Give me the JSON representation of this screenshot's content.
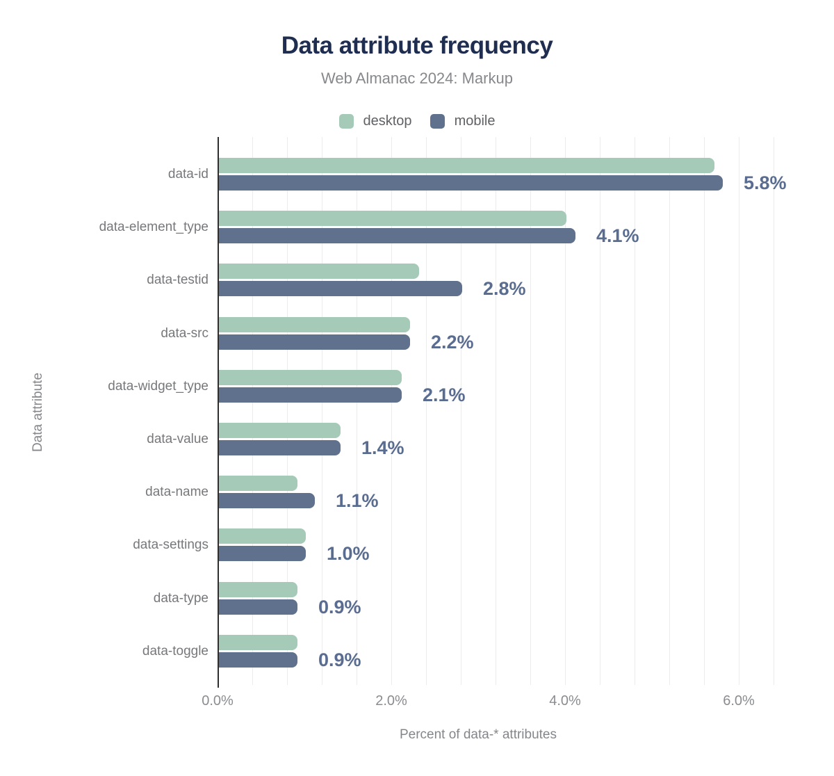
{
  "title": "Data attribute frequency",
  "subtitle": "Web Almanac 2024: Markup",
  "colors": {
    "title": "#1e2d50",
    "subtitle": "#87888c",
    "desktop": "#a6cab8",
    "mobile": "#5f718c",
    "value_label": "#5a6d90",
    "category_label": "#77787b",
    "tick_label": "#8b8c90",
    "axis_title": "#85868a",
    "legend_label": "#606164",
    "gridline": "#ececec",
    "axis_line": "#2e2e2e"
  },
  "chart_data": {
    "type": "bar",
    "orientation": "horizontal",
    "title": "Data attribute frequency",
    "subtitle": "Web Almanac 2024: Markup",
    "xlabel": "Percent of data-* attributes",
    "ylabel": "Data attribute",
    "legend_position": "top",
    "grid": true,
    "gridline_step_pct": 0.4,
    "xlim": [
      0,
      6.6
    ],
    "x_ticks": [
      {
        "value": 0,
        "label": "0.0%"
      },
      {
        "value": 2,
        "label": "2.0%"
      },
      {
        "value": 4,
        "label": "4.0%"
      },
      {
        "value": 6,
        "label": "6.0%"
      }
    ],
    "categories": [
      "data-id",
      "data-element_type",
      "data-testid",
      "data-src",
      "data-widget_type",
      "data-value",
      "data-name",
      "data-settings",
      "data-type",
      "data-toggle"
    ],
    "series": [
      {
        "name": "desktop",
        "values": [
          5.7,
          4.0,
          2.3,
          2.2,
          2.1,
          1.4,
          0.9,
          1.0,
          0.9,
          0.9
        ]
      },
      {
        "name": "mobile",
        "values": [
          5.8,
          4.1,
          2.8,
          2.2,
          2.1,
          1.4,
          1.1,
          1.0,
          0.9,
          0.9
        ]
      }
    ],
    "value_labels": [
      "5.8%",
      "4.1%",
      "2.8%",
      "2.2%",
      "2.1%",
      "1.4%",
      "1.1%",
      "1.0%",
      "0.9%",
      "0.9%"
    ]
  }
}
